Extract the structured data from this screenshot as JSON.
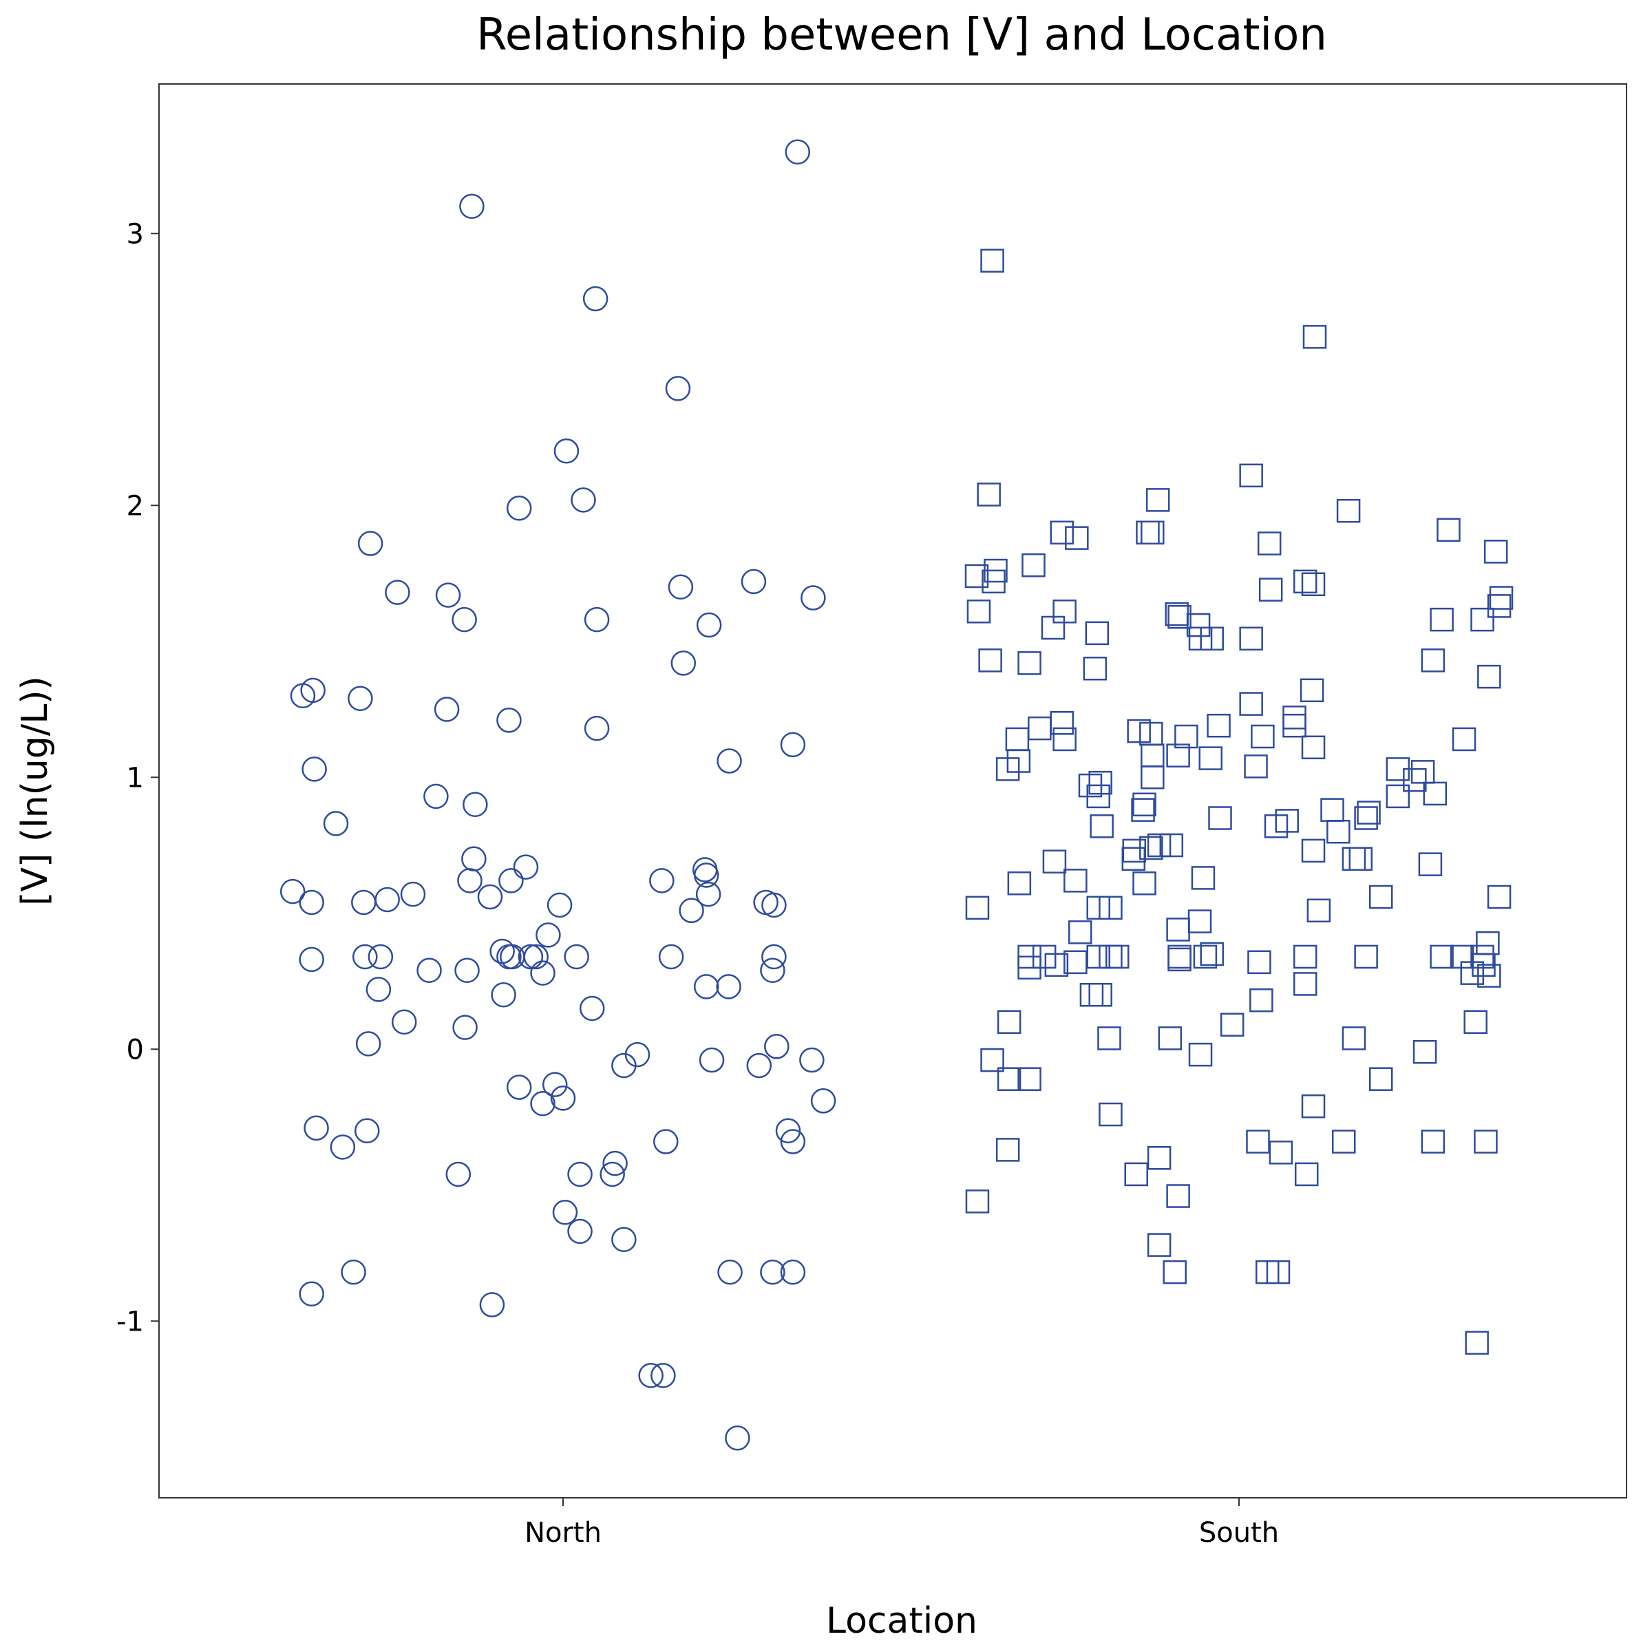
{
  "chart_data": {
    "type": "scatter",
    "title": "Relationship between [V] and Location",
    "xlabel": "Location",
    "ylabel": "[V] (ln(ug/L))",
    "x_categories": [
      "North",
      "South"
    ],
    "yticks": [
      -1,
      0,
      1,
      2,
      3
    ],
    "ylim": [
      -1.65,
      3.55
    ],
    "grid": false,
    "legend": "none",
    "marker_color": "#2E4B9E",
    "series": [
      {
        "category": "North",
        "marker": "circle",
        "points": [
          {
            "x": -0.4,
            "y": 0.58
          },
          {
            "x": -0.385,
            "y": 1.3
          },
          {
            "x": -0.37,
            "y": 1.32
          },
          {
            "x": -0.368,
            "y": 1.03
          },
          {
            "x": -0.372,
            "y": 0.54
          },
          {
            "x": -0.372,
            "y": 0.33
          },
          {
            "x": -0.365,
            "y": -0.29
          },
          {
            "x": -0.372,
            "y": -0.9
          },
          {
            "x": -0.336,
            "y": 0.83
          },
          {
            "x": -0.326,
            "y": -0.36
          },
          {
            "x": -0.31,
            "y": -0.82
          },
          {
            "x": -0.3,
            "y": 1.29
          },
          {
            "x": -0.295,
            "y": 0.54
          },
          {
            "x": -0.293,
            "y": 0.34
          },
          {
            "x": -0.288,
            "y": 0.02
          },
          {
            "x": -0.29,
            "y": -0.3
          },
          {
            "x": -0.285,
            "y": 1.86
          },
          {
            "x": -0.27,
            "y": 0.34
          },
          {
            "x": -0.273,
            "y": 0.22
          },
          {
            "x": -0.26,
            "y": 0.55
          },
          {
            "x": -0.245,
            "y": 1.68
          },
          {
            "x": -0.235,
            "y": 0.1
          },
          {
            "x": -0.222,
            "y": 0.57
          },
          {
            "x": -0.198,
            "y": 0.29
          },
          {
            "x": -0.188,
            "y": 0.93
          },
          {
            "x": -0.17,
            "y": 1.67
          },
          {
            "x": -0.172,
            "y": 1.25
          },
          {
            "x": -0.155,
            "y": -0.46
          },
          {
            "x": -0.146,
            "y": 1.58
          },
          {
            "x": -0.142,
            "y": 0.29
          },
          {
            "x": -0.145,
            "y": 0.08
          },
          {
            "x": -0.138,
            "y": 0.62
          },
          {
            "x": -0.135,
            "y": 3.1
          },
          {
            "x": -0.132,
            "y": 0.7
          },
          {
            "x": -0.13,
            "y": 0.9
          },
          {
            "x": -0.108,
            "y": 0.56
          },
          {
            "x": -0.105,
            "y": -0.94
          },
          {
            "x": -0.09,
            "y": 0.36
          },
          {
            "x": -0.088,
            "y": 0.2
          },
          {
            "x": -0.08,
            "y": 1.21
          },
          {
            "x": -0.077,
            "y": 0.62
          },
          {
            "x": -0.075,
            "y": 0.34
          },
          {
            "x": -0.065,
            "y": 1.99
          },
          {
            "x": -0.065,
            "y": -0.14
          },
          {
            "x": -0.055,
            "y": 0.67
          },
          {
            "x": -0.048,
            "y": 0.34
          },
          {
            "x": -0.04,
            "y": 0.34
          },
          {
            "x": -0.03,
            "y": 0.28
          },
          {
            "x": -0.03,
            "y": -0.2
          },
          {
            "x": -0.022,
            "y": 0.42
          },
          {
            "x": -0.012,
            "y": -0.13
          },
          {
            "x": -0.005,
            "y": 0.53
          },
          {
            "x": 0.0,
            "y": -0.18
          },
          {
            "x": 0.005,
            "y": 2.2
          },
          {
            "x": 0.003,
            "y": -0.6
          },
          {
            "x": 0.02,
            "y": 0.34
          },
          {
            "x": 0.025,
            "y": -0.67
          },
          {
            "x": 0.025,
            "y": -0.46
          },
          {
            "x": 0.03,
            "y": 2.02
          },
          {
            "x": 0.043,
            "y": 0.15
          },
          {
            "x": 0.048,
            "y": 2.76
          },
          {
            "x": 0.05,
            "y": 1.58
          },
          {
            "x": 0.05,
            "y": 1.18
          },
          {
            "x": 0.077,
            "y": -0.42
          },
          {
            "x": 0.073,
            "y": -0.46
          },
          {
            "x": 0.09,
            "y": -0.7
          },
          {
            "x": 0.09,
            "y": -0.06
          },
          {
            "x": 0.11,
            "y": -0.02
          },
          {
            "x": 0.13,
            "y": -1.2
          },
          {
            "x": 0.146,
            "y": 0.62
          },
          {
            "x": 0.148,
            "y": -1.2
          },
          {
            "x": 0.152,
            "y": -0.34
          },
          {
            "x": 0.16,
            "y": 0.34
          },
          {
            "x": 0.17,
            "y": 2.43
          },
          {
            "x": 0.174,
            "y": 1.7
          },
          {
            "x": 0.178,
            "y": 1.42
          },
          {
            "x": 0.19,
            "y": 0.51
          },
          {
            "x": 0.21,
            "y": 0.66
          },
          {
            "x": 0.212,
            "y": 0.64
          },
          {
            "x": 0.212,
            "y": 0.23
          },
          {
            "x": 0.216,
            "y": 1.56
          },
          {
            "x": 0.215,
            "y": 0.57
          },
          {
            "x": 0.22,
            "y": -0.04
          },
          {
            "x": 0.246,
            "y": 1.06
          },
          {
            "x": 0.245,
            "y": 0.23
          },
          {
            "x": 0.247,
            "y": -0.82
          },
          {
            "x": 0.258,
            "y": -1.43
          },
          {
            "x": 0.282,
            "y": 1.72
          },
          {
            "x": 0.29,
            "y": -0.06
          },
          {
            "x": 0.3,
            "y": 0.54
          },
          {
            "x": 0.312,
            "y": 0.53
          },
          {
            "x": 0.312,
            "y": 0.34
          },
          {
            "x": 0.31,
            "y": 0.29
          },
          {
            "x": 0.316,
            "y": 0.01
          },
          {
            "x": 0.31,
            "y": -0.82
          },
          {
            "x": 0.333,
            "y": -0.3
          },
          {
            "x": 0.34,
            "y": -0.34
          },
          {
            "x": 0.34,
            "y": 1.12
          },
          {
            "x": 0.347,
            "y": 3.3
          },
          {
            "x": 0.37,
            "y": 1.66
          },
          {
            "x": 0.368,
            "y": -0.04
          },
          {
            "x": 0.385,
            "y": -0.19
          },
          {
            "x": 0.34,
            "y": -0.82
          },
          {
            "x": -0.08,
            "y": 0.34
          }
        ]
      },
      {
        "category": "South",
        "marker": "square",
        "points": [
          {
            "x": -0.388,
            "y": 1.74
          },
          {
            "x": -0.387,
            "y": 0.52
          },
          {
            "x": -0.387,
            "y": -0.56
          },
          {
            "x": -0.385,
            "y": 1.61
          },
          {
            "x": -0.37,
            "y": 2.04
          },
          {
            "x": -0.368,
            "y": 1.43
          },
          {
            "x": -0.365,
            "y": 2.9
          },
          {
            "x": -0.363,
            "y": 1.72
          },
          {
            "x": -0.36,
            "y": 1.76
          },
          {
            "x": -0.365,
            "y": -0.04
          },
          {
            "x": -0.342,
            "y": 1.03
          },
          {
            "x": -0.34,
            "y": 0.1
          },
          {
            "x": -0.34,
            "y": -0.11
          },
          {
            "x": -0.342,
            "y": -0.37
          },
          {
            "x": -0.328,
            "y": 1.14
          },
          {
            "x": -0.326,
            "y": 1.06
          },
          {
            "x": -0.325,
            "y": 0.61
          },
          {
            "x": -0.31,
            "y": 1.42
          },
          {
            "x": -0.31,
            "y": 0.34
          },
          {
            "x": -0.31,
            "y": 0.3
          },
          {
            "x": -0.31,
            "y": -0.11
          },
          {
            "x": -0.304,
            "y": 1.78
          },
          {
            "x": -0.295,
            "y": 1.18
          },
          {
            "x": -0.288,
            "y": 0.34
          },
          {
            "x": -0.275,
            "y": 1.55
          },
          {
            "x": -0.273,
            "y": 0.69
          },
          {
            "x": -0.27,
            "y": 0.31
          },
          {
            "x": -0.262,
            "y": 1.9
          },
          {
            "x": -0.262,
            "y": 1.2
          },
          {
            "x": -0.258,
            "y": 1.61
          },
          {
            "x": -0.258,
            "y": 1.14
          },
          {
            "x": -0.24,
            "y": 1.88
          },
          {
            "x": -0.242,
            "y": 0.62
          },
          {
            "x": -0.242,
            "y": 0.32
          },
          {
            "x": -0.235,
            "y": 0.43
          },
          {
            "x": -0.22,
            "y": 0.97
          },
          {
            "x": -0.218,
            "y": 0.2
          },
          {
            "x": -0.21,
            "y": 1.53
          },
          {
            "x": -0.213,
            "y": 1.4
          },
          {
            "x": -0.208,
            "y": 0.93
          },
          {
            "x": -0.205,
            "y": 0.98
          },
          {
            "x": -0.203,
            "y": 0.82
          },
          {
            "x": -0.208,
            "y": 0.52
          },
          {
            "x": -0.208,
            "y": 0.34
          },
          {
            "x": -0.205,
            "y": 0.2
          },
          {
            "x": -0.19,
            "y": 0.52
          },
          {
            "x": -0.19,
            "y": 0.34
          },
          {
            "x": -0.192,
            "y": 0.04
          },
          {
            "x": -0.19,
            "y": -0.24
          },
          {
            "x": -0.18,
            "y": 0.34
          },
          {
            "x": -0.155,
            "y": 0.73
          },
          {
            "x": -0.156,
            "y": 0.7
          },
          {
            "x": -0.152,
            "y": -0.46
          },
          {
            "x": -0.148,
            "y": 1.17
          },
          {
            "x": -0.142,
            "y": 0.88
          },
          {
            "x": -0.14,
            "y": 0.9
          },
          {
            "x": -0.14,
            "y": 0.61
          },
          {
            "x": -0.135,
            "y": 1.9
          },
          {
            "x": -0.128,
            "y": 1.9
          },
          {
            "x": -0.13,
            "y": 1.16
          },
          {
            "x": -0.128,
            "y": 1.08
          },
          {
            "x": -0.128,
            "y": 1.0
          },
          {
            "x": -0.13,
            "y": 0.74
          },
          {
            "x": -0.12,
            "y": 2.02
          },
          {
            "x": -0.118,
            "y": 0.75
          },
          {
            "x": -0.118,
            "y": -0.4
          },
          {
            "x": -0.118,
            "y": -0.72
          },
          {
            "x": -0.1,
            "y": 0.75
          },
          {
            "x": -0.102,
            "y": 0.04
          },
          {
            "x": -0.092,
            "y": 1.6
          },
          {
            "x": -0.088,
            "y": 1.59
          },
          {
            "x": -0.09,
            "y": 1.08
          },
          {
            "x": -0.09,
            "y": 0.44
          },
          {
            "x": -0.088,
            "y": 0.34
          },
          {
            "x": -0.088,
            "y": 0.33
          },
          {
            "x": -0.09,
            "y": -0.54
          },
          {
            "x": -0.095,
            "y": -0.82
          },
          {
            "x": -0.078,
            "y": 1.15
          },
          {
            "x": -0.06,
            "y": 1.56
          },
          {
            "x": -0.057,
            "y": 1.51
          },
          {
            "x": -0.058,
            "y": 0.47
          },
          {
            "x": -0.057,
            "y": -0.02
          },
          {
            "x": -0.053,
            "y": 0.63
          },
          {
            "x": -0.05,
            "y": 0.34
          },
          {
            "x": -0.04,
            "y": 1.51
          },
          {
            "x": -0.042,
            "y": 1.07
          },
          {
            "x": -0.03,
            "y": 1.19
          },
          {
            "x": -0.028,
            "y": 0.85
          },
          {
            "x": -0.01,
            "y": 0.09
          },
          {
            "x": 0.018,
            "y": 2.11
          },
          {
            "x": 0.018,
            "y": 1.27
          },
          {
            "x": 0.018,
            "y": 1.51
          },
          {
            "x": 0.025,
            "y": 1.04
          },
          {
            "x": 0.028,
            "y": -0.34
          },
          {
            "x": 0.03,
            "y": 0.32
          },
          {
            "x": 0.033,
            "y": 0.18
          },
          {
            "x": 0.035,
            "y": 1.15
          },
          {
            "x": 0.045,
            "y": 1.86
          },
          {
            "x": 0.047,
            "y": 1.69
          },
          {
            "x": 0.042,
            "y": -0.82
          },
          {
            "x": 0.055,
            "y": 0.82
          },
          {
            "x": 0.058,
            "y": -0.82
          },
          {
            "x": 0.062,
            "y": -0.38
          },
          {
            "x": 0.071,
            "y": 0.84
          },
          {
            "x": 0.082,
            "y": 1.22
          },
          {
            "x": 0.082,
            "y": 1.19
          },
          {
            "x": 0.098,
            "y": 1.72
          },
          {
            "x": 0.098,
            "y": 0.34
          },
          {
            "x": 0.098,
            "y": 0.24
          },
          {
            "x": 0.1,
            "y": -0.46
          },
          {
            "x": 0.11,
            "y": 1.71
          },
          {
            "x": 0.108,
            "y": 1.32
          },
          {
            "x": 0.11,
            "y": 1.11
          },
          {
            "x": 0.11,
            "y": 0.73
          },
          {
            "x": 0.112,
            "y": 2.62
          },
          {
            "x": 0.11,
            "y": -0.21
          },
          {
            "x": 0.118,
            "y": 0.51
          },
          {
            "x": 0.138,
            "y": 0.88
          },
          {
            "x": 0.147,
            "y": 0.8
          },
          {
            "x": 0.155,
            "y": -0.34
          },
          {
            "x": 0.162,
            "y": 1.98
          },
          {
            "x": 0.17,
            "y": 0.7
          },
          {
            "x": 0.17,
            "y": 0.04
          },
          {
            "x": 0.18,
            "y": 0.7
          },
          {
            "x": 0.188,
            "y": 0.85
          },
          {
            "x": 0.188,
            "y": 0.34
          },
          {
            "x": 0.192,
            "y": 0.87
          },
          {
            "x": 0.21,
            "y": 0.56
          },
          {
            "x": 0.21,
            "y": -0.11
          },
          {
            "x": 0.235,
            "y": 1.03
          },
          {
            "x": 0.235,
            "y": 0.93
          },
          {
            "x": 0.26,
            "y": 0.99
          },
          {
            "x": 0.272,
            "y": 1.02
          },
          {
            "x": 0.275,
            "y": -0.01
          },
          {
            "x": 0.283,
            "y": 0.68
          },
          {
            "x": 0.287,
            "y": 1.43
          },
          {
            "x": 0.287,
            "y": -0.34
          },
          {
            "x": 0.29,
            "y": 0.94
          },
          {
            "x": 0.3,
            "y": 1.58
          },
          {
            "x": 0.3,
            "y": 0.34
          },
          {
            "x": 0.31,
            "y": 1.91
          },
          {
            "x": 0.33,
            "y": 0.34
          },
          {
            "x": 0.333,
            "y": 1.14
          },
          {
            "x": 0.345,
            "y": 0.28
          },
          {
            "x": 0.35,
            "y": 0.1
          },
          {
            "x": 0.352,
            "y": -1.08
          },
          {
            "x": 0.36,
            "y": 0.34
          },
          {
            "x": 0.362,
            "y": 0.31
          },
          {
            "x": 0.36,
            "y": 1.58
          },
          {
            "x": 0.368,
            "y": 0.39
          },
          {
            "x": 0.37,
            "y": 0.27
          },
          {
            "x": 0.37,
            "y": 1.37
          },
          {
            "x": 0.365,
            "y": -0.34
          },
          {
            "x": 0.38,
            "y": 1.83
          },
          {
            "x": 0.385,
            "y": 0.56
          },
          {
            "x": 0.385,
            "y": 1.63
          },
          {
            "x": 0.388,
            "y": 1.66
          },
          {
            "x": -0.04,
            "y": 0.35
          }
        ]
      }
    ]
  }
}
